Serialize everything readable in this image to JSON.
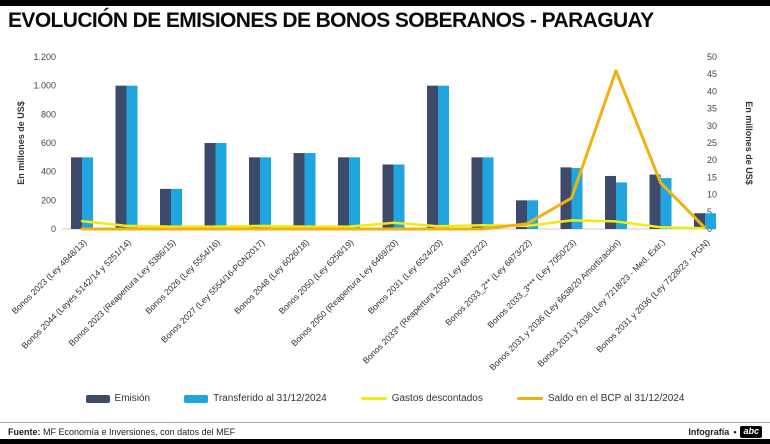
{
  "header": {
    "title": "EVOLUCIÓN DE EMISIONES DE BONOS SOBERANOS - PARAGUAY"
  },
  "chart_data": {
    "type": "bar",
    "subtype": "combo-bar-line",
    "grid": false,
    "legend_position": "bottom",
    "categories": [
      "Bonos 2023 (Ley 4848/13)",
      "Bonos 2044 (Leyes 5142/14 y 5251/14)",
      "Bonos 2023 (Reapertura Ley 5386/15)",
      "Bonos 2026 (Ley 5554/16)",
      "Bonos 2027 (Ley 5554/16-PGN2017)",
      "Bonos 2048 (Ley 6026/18)",
      "Bonos 2050 (Ley 6258/19)",
      "Bonos 2050 (Reapertura Ley 6469/20)",
      "Bonos 2031 (Ley 6524/20)",
      "Bonos 2033* (Reapertura 2050 Ley 6873/22)",
      "Bonos 2033_2** (Ley 6873/22)",
      "Bonos 2033_3*** (Ley 7050/23)",
      "Bonos 2031 y 2036 (Ley 6638/20 Amortización)",
      "Bonos 2031 y 2036 (Ley 7218/23 - Med. Extr.)",
      "Bonos 2031 y 2036 (Ley 7228/23 - PGN)"
    ],
    "bar_series": [
      {
        "name": "Emisión",
        "color": "#3E4A69",
        "axis": "left",
        "values": [
          500,
          1000,
          280,
          600,
          500,
          530,
          500,
          450,
          1000,
          500,
          200,
          430,
          370,
          380,
          110
        ]
      },
      {
        "name": "Transferido al 31/12/2024",
        "color": "#21A5DE",
        "axis": "left",
        "values": [
          500,
          1000,
          280,
          600,
          500,
          530,
          500,
          450,
          1000,
          500,
          200,
          425,
          325,
          355,
          110
        ]
      }
    ],
    "line_series": [
      {
        "name": "Gastos descontados",
        "color": "#F2EB11",
        "axis": "right",
        "values": [
          2.3,
          0.9,
          0.7,
          0.7,
          0.9,
          0.7,
          0.7,
          1.8,
          0.8,
          1.1,
          0.9,
          2.5,
          2.2,
          0.5,
          0.2
        ]
      },
      {
        "name": "Saldo en el BCP al 31/12/2024",
        "color": "#EFB211",
        "axis": "right",
        "values": [
          0,
          0,
          0,
          0,
          0,
          0,
          0,
          0,
          0,
          0,
          1.5,
          9,
          46,
          13.5,
          0.3
        ]
      }
    ],
    "axes": {
      "left": {
        "label": "En millones de US$",
        "min": 0,
        "max": 1200,
        "step": 200,
        "ticks": [
          "0",
          "200",
          "400",
          "600",
          "800",
          "1.000",
          "1.200"
        ]
      },
      "right": {
        "label": "En millones de US$",
        "min": 0,
        "max": 50,
        "step": 5,
        "ticks": [
          "0",
          "5",
          "10",
          "15",
          "20",
          "25",
          "30",
          "35",
          "40",
          "45",
          "50"
        ]
      }
    }
  },
  "footer": {
    "source_label": "Fuente:",
    "source_text": "MF Economía e Inversiones, con datos del MEF",
    "credit_text": "Infografía",
    "bullet": "•",
    "logo_text": "abc"
  }
}
